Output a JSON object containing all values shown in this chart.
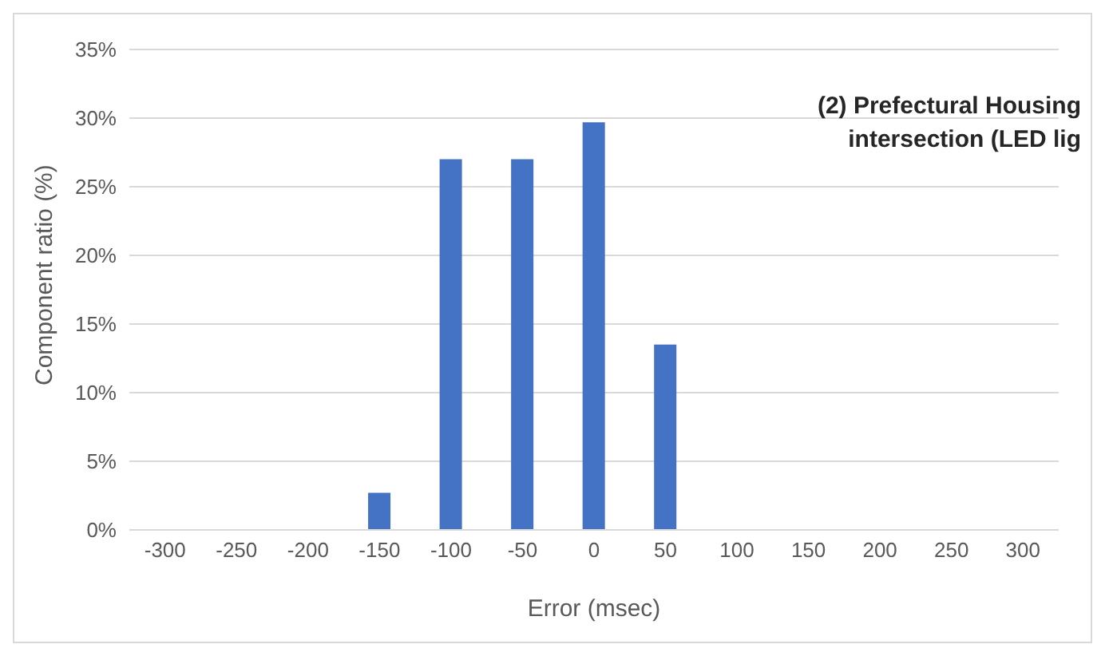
{
  "chart_data": {
    "type": "bar",
    "title": "(2) Prefectural Housing\nintersection (LED lig",
    "xlabel": "Error (msec)",
    "ylabel": "Component ratio (%)",
    "categories": [
      "-300",
      "-250",
      "-200",
      "-150",
      "-100",
      "-50",
      "0",
      "50",
      "100",
      "150",
      "200",
      "250",
      "300"
    ],
    "values": [
      0,
      0,
      0,
      2.7,
      27,
      27,
      29.7,
      13.5,
      0,
      0,
      0,
      0,
      0
    ],
    "color": "#4472c4",
    "ylim": [
      0,
      35
    ],
    "yticks": [
      {
        "value": 0,
        "label": "0%"
      },
      {
        "value": 5,
        "label": "5%"
      },
      {
        "value": 10,
        "label": "10%"
      },
      {
        "value": 15,
        "label": "15%"
      },
      {
        "value": 20,
        "label": "20%"
      },
      {
        "value": 25,
        "label": "25%"
      },
      {
        "value": 30,
        "label": "30%"
      },
      {
        "value": 35,
        "label": "35%"
      }
    ],
    "grid": "y"
  }
}
